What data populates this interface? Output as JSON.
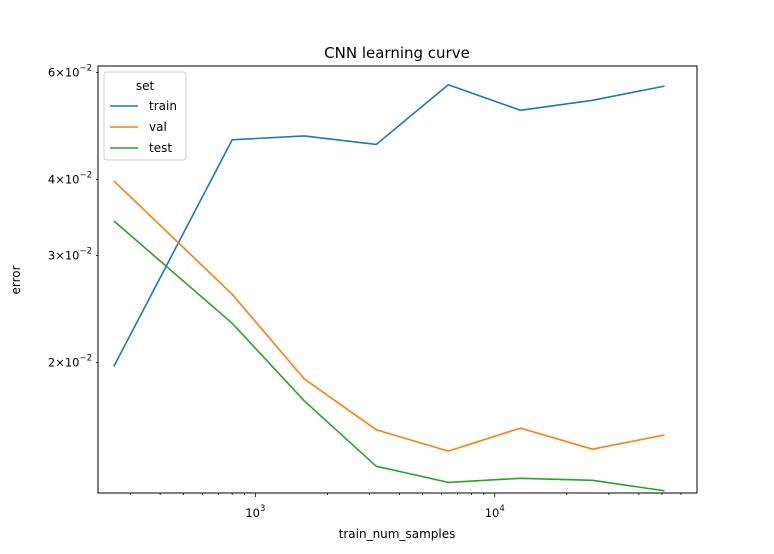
{
  "chart_data": {
    "type": "line",
    "title": "CNN learning curve",
    "xlabel": "train_num_samples",
    "ylabel": "error",
    "x_scale": "log",
    "y_scale": "log",
    "xlim": [
      220,
      70000
    ],
    "ylim": [
      0.0122,
      0.0615
    ],
    "x": [
      256,
      800,
      1600,
      3200,
      6400,
      12800,
      25600,
      51200
    ],
    "series": [
      {
        "name": "train",
        "color": "#1f77b4",
        "values": [
          0.0197,
          0.0465,
          0.0472,
          0.0457,
          0.0573,
          0.052,
          0.054,
          0.057
        ]
      },
      {
        "name": "val",
        "color": "#ff7f0e",
        "values": [
          0.0398,
          0.0259,
          0.0188,
          0.0155,
          0.0143,
          0.0156,
          0.0144,
          0.0152
        ]
      },
      {
        "name": "test",
        "color": "#2ca02c",
        "values": [
          0.0342,
          0.0232,
          0.0173,
          0.0135,
          0.0127,
          0.0129,
          0.0128,
          0.0123
        ]
      }
    ],
    "legend": {
      "title": "set",
      "placement": "top-left"
    },
    "x_ticks": [
      {
        "value": 1000,
        "base": "10",
        "exp": "3"
      },
      {
        "value": 10000,
        "base": "10",
        "exp": "4"
      }
    ],
    "x_minor_ticks": [
      300,
      400,
      500,
      600,
      700,
      800,
      900,
      2000,
      3000,
      4000,
      5000,
      6000,
      7000,
      8000,
      9000,
      20000,
      30000,
      40000,
      50000,
      60000
    ],
    "y_ticks": [
      {
        "value": 0.02,
        "coef": "2",
        "base": "10",
        "exp": "−2"
      },
      {
        "value": 0.03,
        "coef": "3",
        "base": "10",
        "exp": "−2"
      },
      {
        "value": 0.04,
        "coef": "4",
        "base": "10",
        "exp": "−2"
      },
      {
        "value": 0.06,
        "coef": "6",
        "base": "10",
        "exp": "−2"
      }
    ],
    "grid": false
  }
}
